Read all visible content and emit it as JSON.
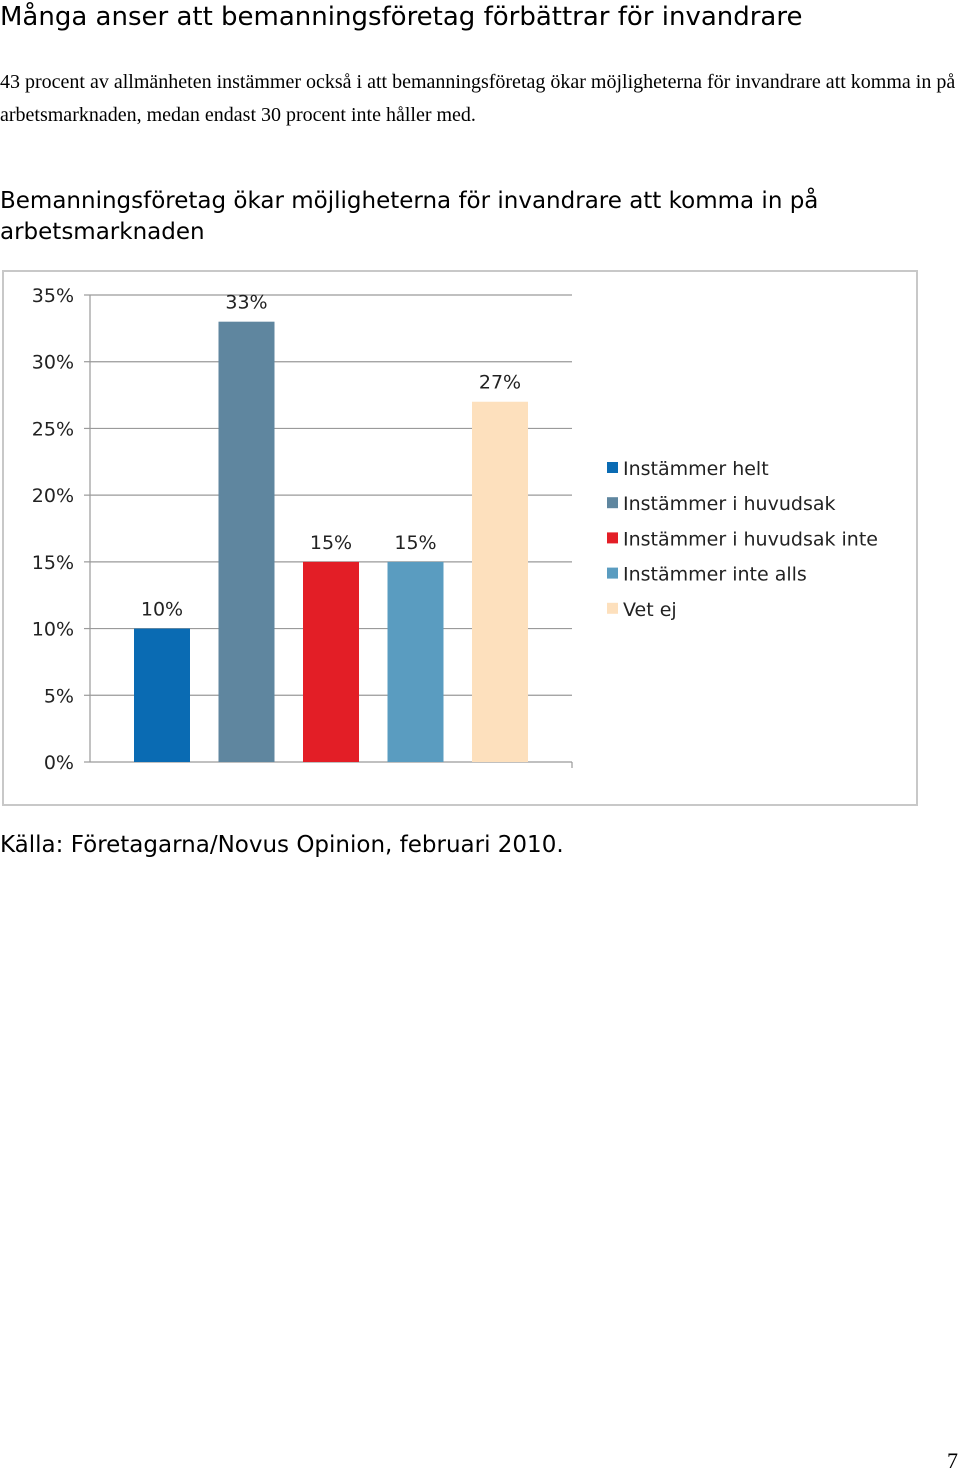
{
  "page": {
    "heading": "Många anser att bemanningsföretag förbättrar för invandrare",
    "intro": "43 procent av allmänheten instämmer också i att bemanningsföretag ökar möjligheterna för invandrare att komma in på arbetsmarknaden, medan endast 30 procent inte håller med.",
    "source": "Källa: Företagarna/Novus Opinion, februari 2010.",
    "page_number": "7"
  },
  "chart_data": {
    "type": "bar",
    "title": "Bemanningsföretag ökar möjligheterna för invandrare att komma in på arbetsmarknaden",
    "xlabel": "",
    "ylabel": "",
    "ylim": [
      0,
      35
    ],
    "yticks": [
      "0%",
      "5%",
      "10%",
      "15%",
      "20%",
      "25%",
      "30%",
      "35%"
    ],
    "grid": true,
    "legend_position": "right",
    "series": [
      {
        "name": "Instämmer helt",
        "value": 10,
        "label": "10%",
        "color": "#0a6bb3"
      },
      {
        "name": "Instämmer i huvudsak",
        "value": 33,
        "label": "33%",
        "color": "#5f869f"
      },
      {
        "name": "Instämmer i huvudsak inte",
        "value": 15,
        "label": "15%",
        "color": "#e31e26"
      },
      {
        "name": "Instämmer inte alls",
        "value": 15,
        "label": "15%",
        "color": "#5a9cc0"
      },
      {
        "name": "Vet ej",
        "value": 27,
        "label": "27%",
        "color": "#fde0bd"
      }
    ]
  }
}
